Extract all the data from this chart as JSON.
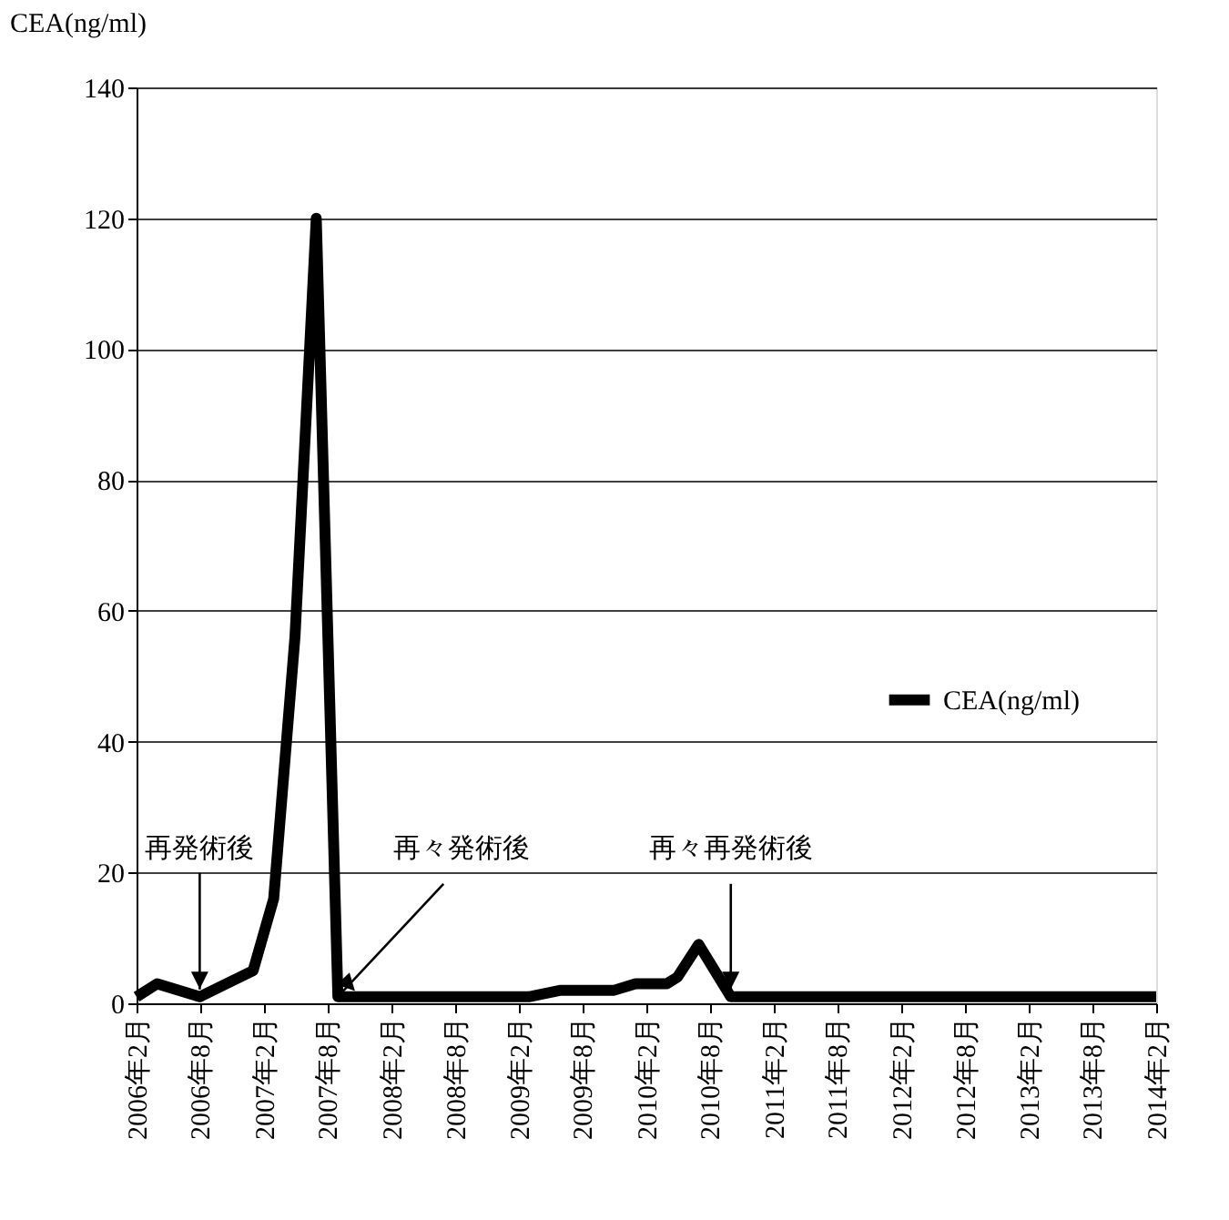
{
  "chart_data": {
    "type": "line",
    "ylabel": "CEA(ng/ml)",
    "x": [
      "2006-02",
      "2006-04",
      "2006-08",
      "2007-01",
      "2007-03",
      "2007-05",
      "2007-07",
      "2007-09",
      "2008-06",
      "2009-03",
      "2009-06",
      "2009-11",
      "2010-01",
      "2010-04",
      "2010-05",
      "2010-07",
      "2010-10",
      "2011-08",
      "2012-08",
      "2013-08",
      "2014-02"
    ],
    "series": [
      {
        "name": "CEA(ng/ml)",
        "color": "#000000",
        "values": [
          1,
          3,
          1,
          5,
          16,
          56,
          120,
          1,
          1,
          1,
          2,
          2,
          3,
          3,
          4,
          9,
          1,
          1,
          1,
          1,
          1
        ]
      }
    ],
    "xlim": [
      "2006-02",
      "2014-02"
    ],
    "xticks": [
      {
        "value": "2006-02",
        "label": "2006年2月"
      },
      {
        "value": "2006-08",
        "label": "2006年8月"
      },
      {
        "value": "2007-02",
        "label": "2007年2月"
      },
      {
        "value": "2007-08",
        "label": "2007年8月"
      },
      {
        "value": "2008-02",
        "label": "2008年2月"
      },
      {
        "value": "2008-08",
        "label": "2008年8月"
      },
      {
        "value": "2009-02",
        "label": "2009年2月"
      },
      {
        "value": "2009-08",
        "label": "2009年8月"
      },
      {
        "value": "2010-02",
        "label": "2010年2月"
      },
      {
        "value": "2010-08",
        "label": "2010年8月"
      },
      {
        "value": "2011-02",
        "label": "2011年2月"
      },
      {
        "value": "2011-08",
        "label": "2011年8月"
      },
      {
        "value": "2012-02",
        "label": "2012年2月"
      },
      {
        "value": "2012-08",
        "label": "2012年8月"
      },
      {
        "value": "2013-02",
        "label": "2013年2月"
      },
      {
        "value": "2013-08",
        "label": "2013年8月"
      },
      {
        "value": "2014-02",
        "label": "2014年2月"
      }
    ],
    "ylim": [
      0,
      140
    ],
    "yticks": [
      0,
      20,
      40,
      60,
      80,
      100,
      120,
      140
    ],
    "grid": "y",
    "legend": "right",
    "marker": "none",
    "line_style": "solid",
    "annotations": [
      {
        "text": "再発術後",
        "x": "2006-08",
        "y": 1
      },
      {
        "text": "再々発術後",
        "x": "2007-09",
        "y": 1
      },
      {
        "text": "再々再発術後",
        "x": "2010-10",
        "y": 1
      }
    ]
  }
}
